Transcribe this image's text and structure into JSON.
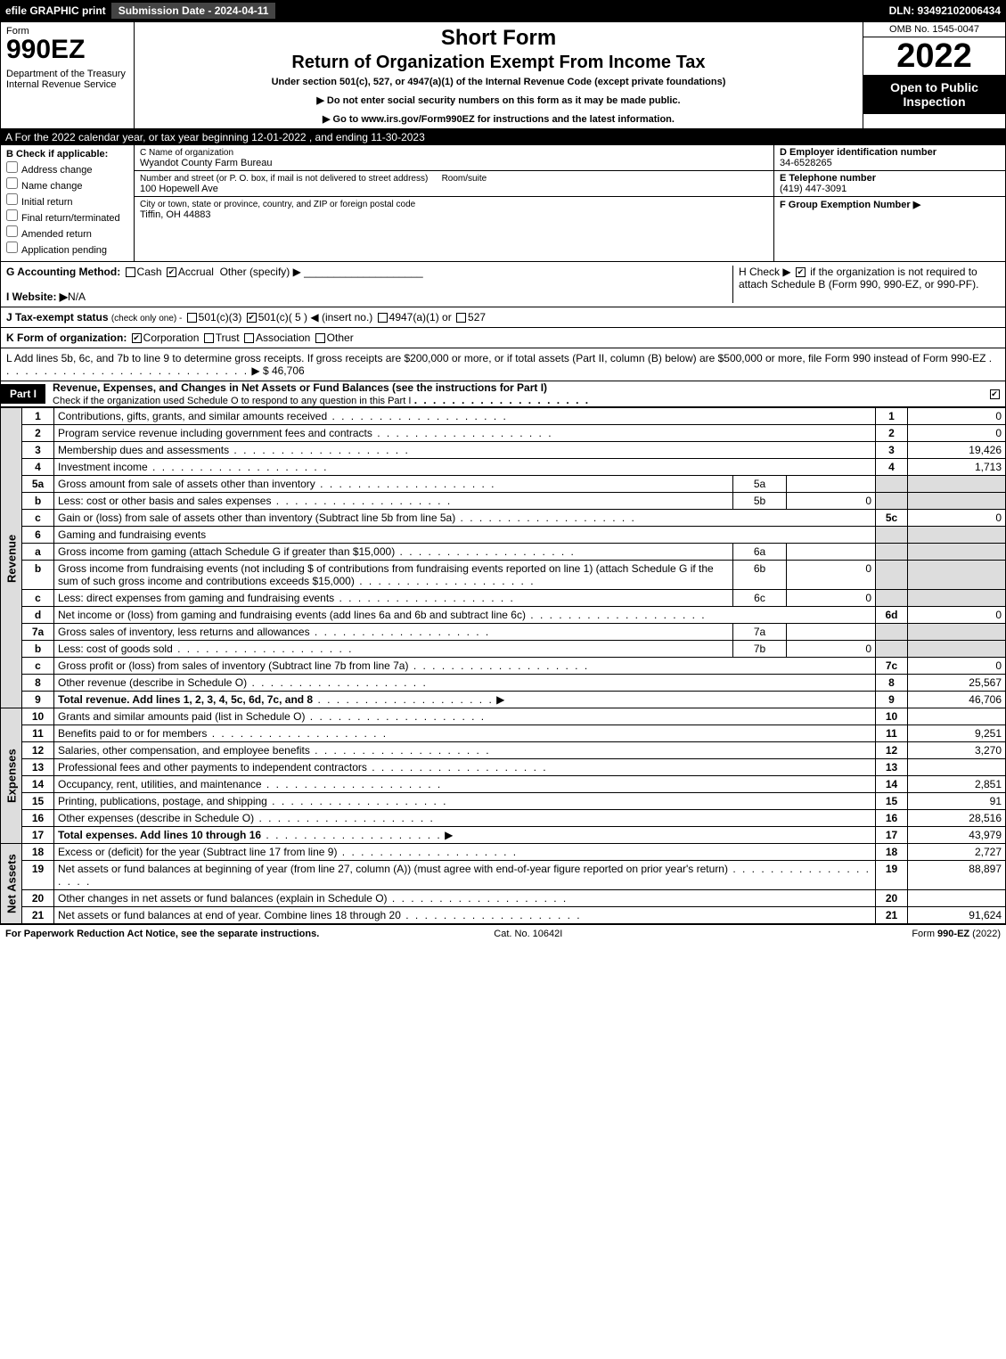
{
  "topbar": {
    "efile": "efile GRAPHIC print",
    "subdate_lbl": "Submission Date - 2024-04-11",
    "dln": "DLN: 93492102006434"
  },
  "hdr": {
    "form": "Form",
    "num": "990EZ",
    "dept": "Department of the Treasury\nInternal Revenue Service",
    "t1": "Short Form",
    "t2": "Return of Organization Exempt From Income Tax",
    "sub": "Under section 501(c), 527, or 4947(a)(1) of the Internal Revenue Code (except private foundations)",
    "note1": "▶ Do not enter social security numbers on this form as it may be made public.",
    "note2": "▶ Go to www.irs.gov/Form990EZ for instructions and the latest information.",
    "omb": "OMB No. 1545-0047",
    "year": "2022",
    "open": "Open to Public Inspection"
  },
  "A": "A  For the 2022 calendar year, or tax year beginning 12-01-2022 , and ending 11-30-2023",
  "B": {
    "lbl": "B  Check if applicable:",
    "opts": [
      "Address change",
      "Name change",
      "Initial return",
      "Final return/terminated",
      "Amended return",
      "Application pending"
    ]
  },
  "C": {
    "lbl": "C Name of organization",
    "name": "Wyandot County Farm Bureau",
    "addr_lbl": "Number and street (or P. O. box, if mail is not delivered to street address)",
    "room_lbl": "Room/suite",
    "addr": "100 Hopewell Ave",
    "city_lbl": "City or town, state or province, country, and ZIP or foreign postal code",
    "city": "Tiffin, OH  44883"
  },
  "D": {
    "lbl": "D Employer identification number",
    "val": "34-6528265"
  },
  "E": {
    "lbl": "E Telephone number",
    "val": "(419) 447-3091"
  },
  "F": {
    "lbl": "F Group Exemption Number  ▶"
  },
  "G": {
    "lbl": "G Accounting Method:",
    "cash": "Cash",
    "accrual": "Accrual",
    "other": "Other (specify) ▶"
  },
  "H": {
    "txt": "H  Check ▶ ",
    "chk": "if the organization is not required to attach Schedule B (Form 990, 990-EZ, or 990-PF)."
  },
  "I": {
    "lbl": "I Website: ▶",
    "val": "N/A"
  },
  "J": {
    "lbl": "J Tax-exempt status",
    "note": "(check only one) -",
    "o1": "501(c)(3)",
    "o2": "501(c)( 5 ) ◀ (insert no.)",
    "o3": "4947(a)(1) or",
    "o4": "527"
  },
  "K": {
    "lbl": "K Form of organization:",
    "o1": "Corporation",
    "o2": "Trust",
    "o3": "Association",
    "o4": "Other"
  },
  "L": {
    "txt": "L Add lines 5b, 6c, and 7b to line 9 to determine gross receipts. If gross receipts are $200,000 or more, or if total assets (Part II, column (B) below) are $500,000 or more, file Form 990 instead of Form 990-EZ",
    "amt": "▶ $ 46,706"
  },
  "part1": {
    "lbl": "Part I",
    "title": "Revenue, Expenses, and Changes in Net Assets or Fund Balances (see the instructions for Part I)",
    "sub": "Check if the organization used Schedule O to respond to any question in this Part I"
  },
  "sides": {
    "rev": "Revenue",
    "exp": "Expenses",
    "na": "Net Assets"
  },
  "lines": [
    {
      "n": "1",
      "d": "Contributions, gifts, grants, and similar amounts received",
      "r": "1",
      "a": "0"
    },
    {
      "n": "2",
      "d": "Program service revenue including government fees and contracts",
      "r": "2",
      "a": "0"
    },
    {
      "n": "3",
      "d": "Membership dues and assessments",
      "r": "3",
      "a": "19,426"
    },
    {
      "n": "4",
      "d": "Investment income",
      "r": "4",
      "a": "1,713"
    },
    {
      "n": "5a",
      "d": "Gross amount from sale of assets other than inventory",
      "sub": "5a",
      "sv": ""
    },
    {
      "n": "b",
      "d": "Less: cost or other basis and sales expenses",
      "sub": "5b",
      "sv": "0"
    },
    {
      "n": "c",
      "d": "Gain or (loss) from sale of assets other than inventory (Subtract line 5b from line 5a)",
      "r": "5c",
      "a": "0"
    },
    {
      "n": "6",
      "d": "Gaming and fundraising events"
    },
    {
      "n": "a",
      "d": "Gross income from gaming (attach Schedule G if greater than $15,000)",
      "sub": "6a",
      "sv": ""
    },
    {
      "n": "b",
      "d": "Gross income from fundraising events (not including $                     of contributions from fundraising events reported on line 1) (attach Schedule G if the sum of such gross income and contributions exceeds $15,000)",
      "sub": "6b",
      "sv": "0"
    },
    {
      "n": "c",
      "d": "Less: direct expenses from gaming and fundraising events",
      "sub": "6c",
      "sv": "0"
    },
    {
      "n": "d",
      "d": "Net income or (loss) from gaming and fundraising events (add lines 6a and 6b and subtract line 6c)",
      "r": "6d",
      "a": "0"
    },
    {
      "n": "7a",
      "d": "Gross sales of inventory, less returns and allowances",
      "sub": "7a",
      "sv": ""
    },
    {
      "n": "b",
      "d": "Less: cost of goods sold",
      "sub": "7b",
      "sv": "0"
    },
    {
      "n": "c",
      "d": "Gross profit or (loss) from sales of inventory (Subtract line 7b from line 7a)",
      "r": "7c",
      "a": "0"
    },
    {
      "n": "8",
      "d": "Other revenue (describe in Schedule O)",
      "r": "8",
      "a": "25,567"
    },
    {
      "n": "9",
      "d": "Total revenue. Add lines 1, 2, 3, 4, 5c, 6d, 7c, and 8",
      "r": "9",
      "a": "46,706",
      "bold": true,
      "arrow": true
    }
  ],
  "exp": [
    {
      "n": "10",
      "d": "Grants and similar amounts paid (list in Schedule O)",
      "r": "10",
      "a": ""
    },
    {
      "n": "11",
      "d": "Benefits paid to or for members",
      "r": "11",
      "a": "9,251"
    },
    {
      "n": "12",
      "d": "Salaries, other compensation, and employee benefits",
      "r": "12",
      "a": "3,270"
    },
    {
      "n": "13",
      "d": "Professional fees and other payments to independent contractors",
      "r": "13",
      "a": ""
    },
    {
      "n": "14",
      "d": "Occupancy, rent, utilities, and maintenance",
      "r": "14",
      "a": "2,851"
    },
    {
      "n": "15",
      "d": "Printing, publications, postage, and shipping",
      "r": "15",
      "a": "91"
    },
    {
      "n": "16",
      "d": "Other expenses (describe in Schedule O)",
      "r": "16",
      "a": "28,516"
    },
    {
      "n": "17",
      "d": "Total expenses. Add lines 10 through 16",
      "r": "17",
      "a": "43,979",
      "bold": true,
      "arrow": true
    }
  ],
  "na": [
    {
      "n": "18",
      "d": "Excess or (deficit) for the year (Subtract line 17 from line 9)",
      "r": "18",
      "a": "2,727"
    },
    {
      "n": "19",
      "d": "Net assets or fund balances at beginning of year (from line 27, column (A)) (must agree with end-of-year figure reported on prior year's return)",
      "r": "19",
      "a": "88,897"
    },
    {
      "n": "20",
      "d": "Other changes in net assets or fund balances (explain in Schedule O)",
      "r": "20",
      "a": ""
    },
    {
      "n": "21",
      "d": "Net assets or fund balances at end of year. Combine lines 18 through 20",
      "r": "21",
      "a": "91,624"
    }
  ],
  "foot": {
    "l": "For Paperwork Reduction Act Notice, see the separate instructions.",
    "m": "Cat. No. 10642I",
    "r": "Form 990-EZ (2022)"
  }
}
